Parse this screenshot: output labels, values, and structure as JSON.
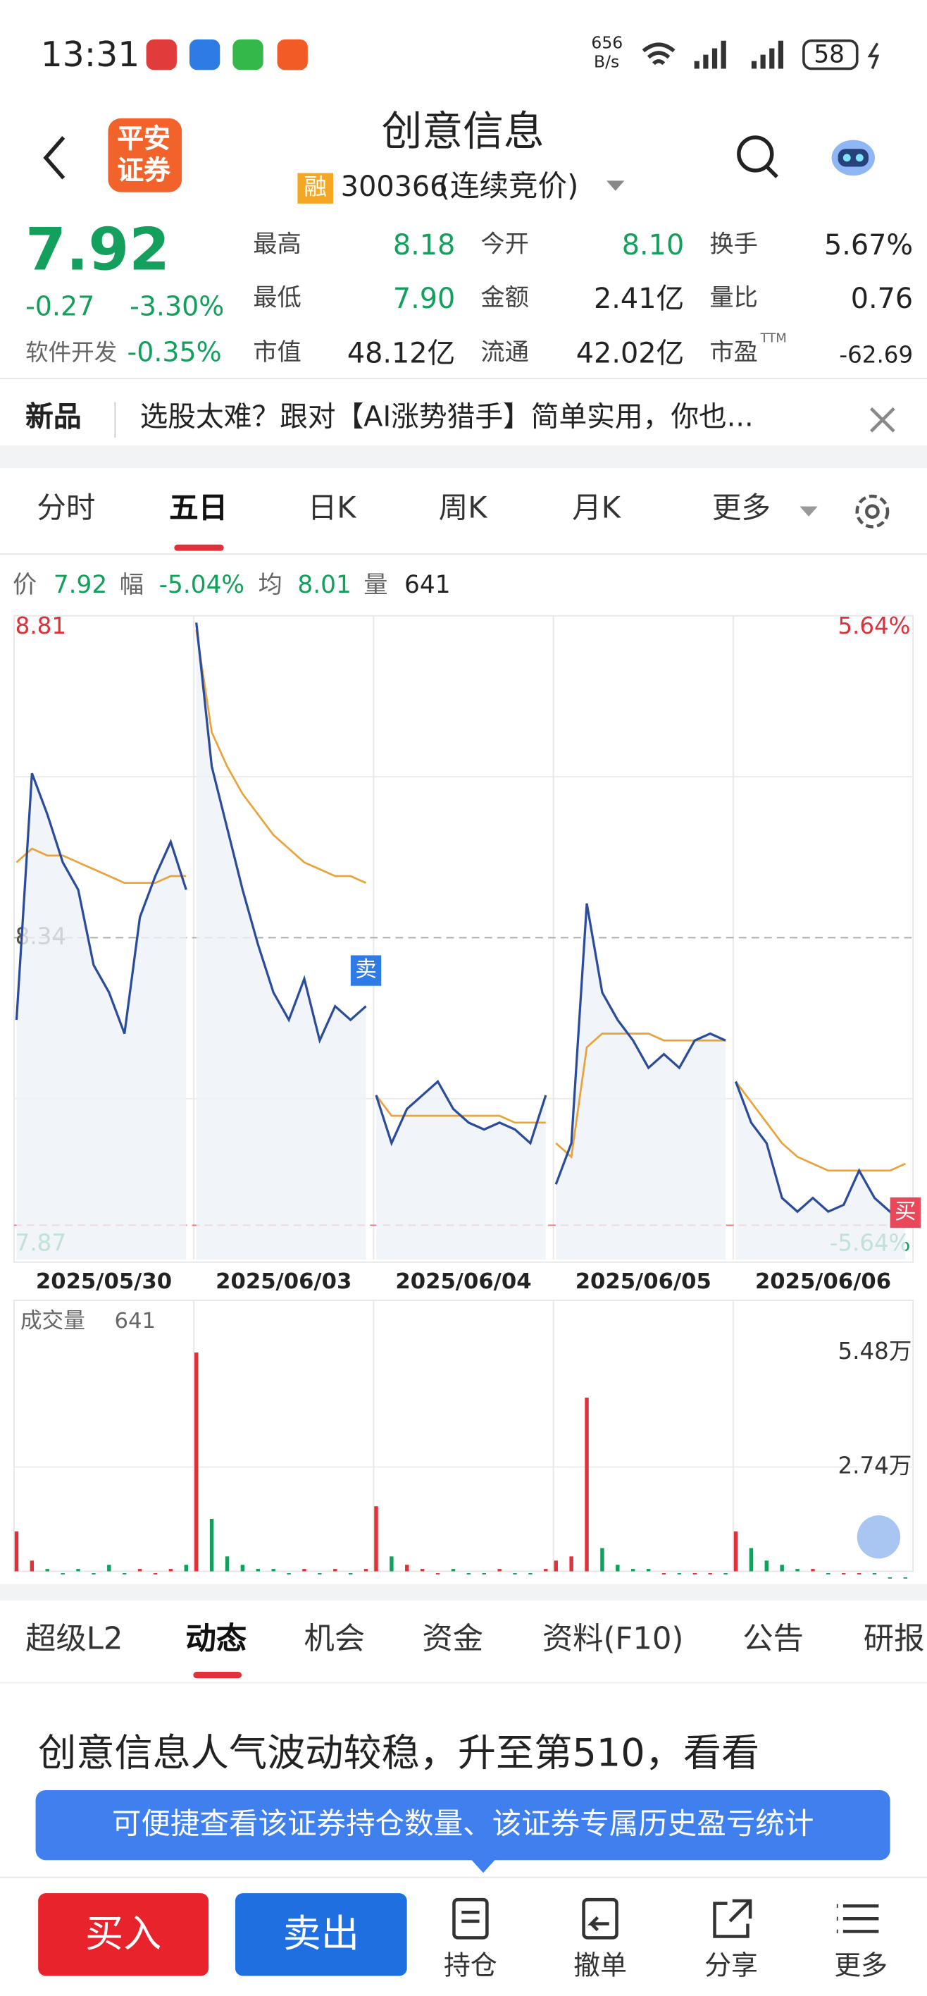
{
  "status": {
    "time": "13:31",
    "speed": "656",
    "speed_unit": "B/s",
    "battery": "58"
  },
  "header": {
    "logo": [
      "平安",
      "证券"
    ],
    "title": "创意信息",
    "badge": "融",
    "code": "300366",
    "state": "(连续竞价)"
  },
  "quote": {
    "price": "7.92",
    "change": "-0.27",
    "change_pct": "-3.30%",
    "sector": "软件开发",
    "sector_pct": "-0.35%",
    "stats": [
      {
        "label": "最高",
        "value": "8.18"
      },
      {
        "label": "今开",
        "value": "8.10"
      },
      {
        "label": "换手",
        "value": "5.67%"
      },
      {
        "label": "最低",
        "value": "7.90"
      },
      {
        "label": "金额",
        "value": "2.41亿"
      },
      {
        "label": "量比",
        "value": "0.76"
      },
      {
        "label": "市值",
        "value": "48.12亿"
      },
      {
        "label": "流通",
        "value": "42.02亿"
      },
      {
        "label": "市盈",
        "value": "-62.69",
        "sup": "TTM"
      }
    ]
  },
  "news": {
    "tag": "新品",
    "text": "选股太难？跟对【AI涨势猎手】简单实用，你也..."
  },
  "chart_tabs": [
    "分时",
    "五日",
    "日K",
    "周K",
    "月K",
    "更多"
  ],
  "info": [
    {
      "label": "价",
      "value": "7.92"
    },
    {
      "label": "幅",
      "value": "-5.04%"
    },
    {
      "label": "均",
      "value": "8.01"
    },
    {
      "label": "量",
      "value": "641"
    }
  ],
  "chart": {
    "type": "line",
    "ylim": [
      7.87,
      8.81
    ],
    "yticks": [
      8.81,
      8.34,
      7.87
    ],
    "y2lim": [
      -5.64,
      5.64
    ],
    "y2ticks": [
      {
        "value": 5.64,
        "label": "5.64%"
      },
      {
        "value": -5.64,
        "label": "-5.64%"
      }
    ],
    "price_color": "#2b4c9b",
    "avg_color": "#e8a33a",
    "up_color": "#e0303a",
    "down_color": "#12a05c",
    "days": [
      {
        "date": "2025/05/30",
        "price": [
          8.22,
          8.58,
          8.52,
          8.45,
          8.41,
          8.3,
          8.26,
          8.2,
          8.37,
          8.43,
          8.48,
          8.41
        ],
        "avg": [
          8.45,
          8.47,
          8.46,
          8.46,
          8.45,
          8.44,
          8.43,
          8.42,
          8.42,
          8.42,
          8.43,
          8.43
        ],
        "volume": [
          1.2,
          0.5,
          0.3,
          0.2,
          0.3,
          0.2,
          0.4,
          0.2,
          0.3,
          0.2,
          0.3,
          0.4
        ]
      },
      {
        "date": "2025/06/03",
        "price": [
          8.8,
          8.59,
          8.5,
          8.41,
          8.33,
          8.26,
          8.22,
          8.28,
          8.19,
          8.24,
          8.22,
          8.24
        ],
        "avg": [
          8.79,
          8.64,
          8.59,
          8.55,
          8.52,
          8.49,
          8.47,
          8.45,
          8.44,
          8.43,
          8.43,
          8.42
        ],
        "volume": [
          5.48,
          1.5,
          0.6,
          0.4,
          0.3,
          0.3,
          0.2,
          0.3,
          0.2,
          0.3,
          0.2,
          0.3
        ],
        "marker": "卖"
      },
      {
        "date": "2025/06/04",
        "price": [
          8.11,
          8.04,
          8.09,
          8.11,
          8.13,
          8.09,
          8.07,
          8.06,
          8.07,
          8.06,
          8.04,
          8.11
        ],
        "avg": [
          8.11,
          8.08,
          8.08,
          8.08,
          8.08,
          8.08,
          8.08,
          8.08,
          8.08,
          8.07,
          8.07,
          8.07
        ],
        "volume": [
          1.8,
          0.6,
          0.4,
          0.3,
          0.2,
          0.3,
          0.2,
          0.2,
          0.3,
          0.2,
          0.2,
          0.3
        ]
      },
      {
        "date": "2025/06/05",
        "price": [
          7.98,
          8.04,
          8.39,
          8.26,
          8.22,
          8.19,
          8.15,
          8.17,
          8.15,
          8.19,
          8.2,
          8.19
        ],
        "avg": [
          8.04,
          8.02,
          8.18,
          8.2,
          8.2,
          8.2,
          8.2,
          8.19,
          8.19,
          8.19,
          8.19,
          8.19
        ],
        "volume": [
          0.5,
          0.6,
          4.4,
          0.8,
          0.4,
          0.3,
          0.3,
          0.2,
          0.2,
          0.2,
          0.2,
          0.2
        ]
      },
      {
        "date": "2025/06/06",
        "price": [
          8.13,
          8.07,
          8.04,
          7.96,
          7.94,
          7.96,
          7.94,
          7.95,
          8.0,
          7.96,
          7.94,
          7.92
        ],
        "avg": [
          8.13,
          8.1,
          8.07,
          8.04,
          8.02,
          8.01,
          8.0,
          8.0,
          8.0,
          8.0,
          8.0,
          8.01
        ],
        "volume": [
          1.2,
          0.8,
          0.5,
          0.4,
          0.3,
          0.3,
          0.2,
          0.2,
          0.2,
          0.2,
          0.1,
          0.1
        ],
        "marker": "买"
      }
    ],
    "volume_title": "成交量",
    "volume_value": "641",
    "vlim": [
      0,
      5.48
    ],
    "vticks": [
      {
        "value": 5.48,
        "label": "5.48万"
      },
      {
        "value": 2.74,
        "label": "2.74万"
      }
    ]
  },
  "tabs": [
    "超级L2",
    "动态",
    "机会",
    "资金",
    "资料(F10)",
    "公告",
    "研报"
  ],
  "article": "创意信息人气波动较稳，升至第510，看看",
  "tooltip": "可便捷查看该证券持仓数量、该证券专属历史盈亏统计",
  "bottom": {
    "buy": "买入",
    "sell": "卖出",
    "actions": [
      "持仓",
      "撤单",
      "分享",
      "更多"
    ]
  }
}
